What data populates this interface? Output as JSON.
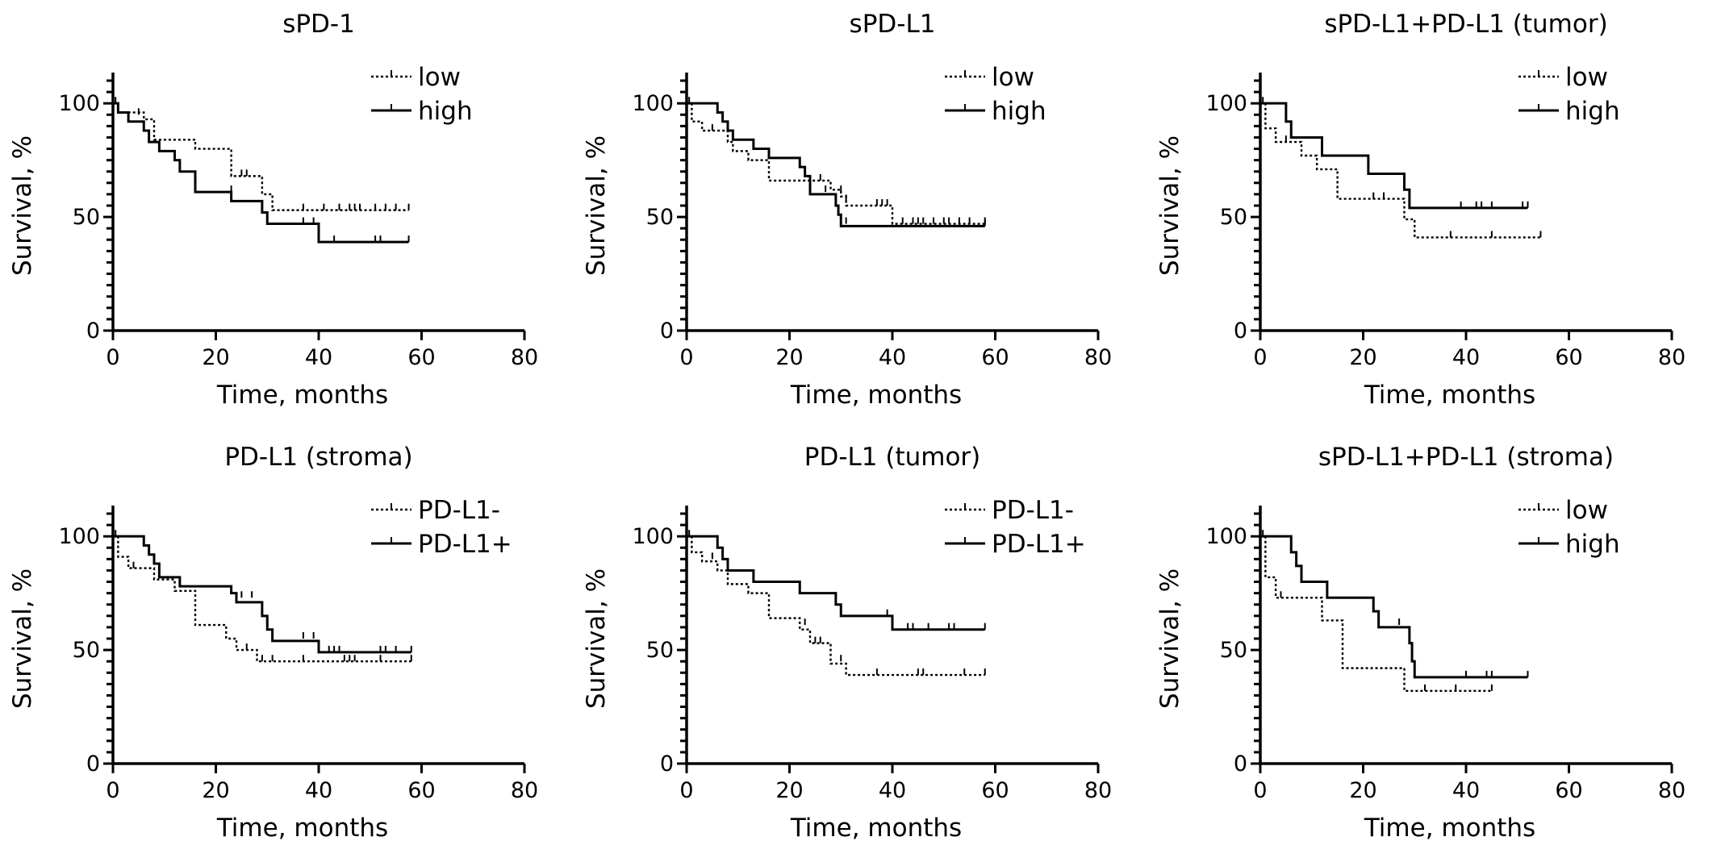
{
  "chart_data": [
    {
      "type": "line",
      "subtype": "kaplan-meier",
      "title": "sPD-1",
      "xlabel": "Time, months",
      "ylabel": "Survival, %",
      "xlim": [
        0,
        80
      ],
      "ylim": [
        0,
        110
      ],
      "xticks": [
        0,
        20,
        40,
        60,
        80
      ],
      "yticks": [
        0,
        50,
        100
      ],
      "legend_position": "top-right",
      "series": [
        {
          "name": "low",
          "style": "dotted",
          "steps": [
            [
              0,
              100
            ],
            [
              1,
              96
            ],
            [
              6,
              93
            ],
            [
              8,
              84
            ],
            [
              16,
              80
            ],
            [
              23,
              68
            ],
            [
              29,
              60
            ],
            [
              31,
              53
            ],
            [
              57.5,
              53
            ]
          ],
          "censored": [
            [
              5,
              95
            ],
            [
              25,
              68
            ],
            [
              26,
              68
            ],
            [
              37,
              53
            ],
            [
              41,
              53
            ],
            [
              44,
              53
            ],
            [
              46,
              53
            ],
            [
              47,
              53
            ],
            [
              48,
              53
            ],
            [
              51,
              53
            ],
            [
              53,
              53
            ],
            [
              55,
              53
            ],
            [
              57.5,
              53
            ]
          ]
        },
        {
          "name": "high",
          "style": "solid",
          "steps": [
            [
              0,
              100
            ],
            [
              1,
              96
            ],
            [
              3,
              92
            ],
            [
              6,
              88
            ],
            [
              7,
              83
            ],
            [
              9,
              79
            ],
            [
              12,
              75
            ],
            [
              13,
              70
            ],
            [
              16,
              61
            ],
            [
              23,
              57
            ],
            [
              29,
              52
            ],
            [
              30,
              47
            ],
            [
              40,
              39
            ],
            [
              57.5,
              39
            ]
          ],
          "censored": [
            [
              0.5,
              100
            ],
            [
              23,
              61
            ],
            [
              30,
              48
            ],
            [
              37,
              47
            ],
            [
              39,
              47
            ],
            [
              43,
              39
            ],
            [
              51,
              39
            ],
            [
              52,
              39
            ],
            [
              57.5,
              39
            ]
          ]
        }
      ]
    },
    {
      "type": "line",
      "subtype": "kaplan-meier",
      "title": "sPD-L1",
      "xlabel": "Time, months",
      "ylabel": "Survival, %",
      "xlim": [
        0,
        80
      ],
      "ylim": [
        0,
        110
      ],
      "xticks": [
        0,
        20,
        40,
        60,
        80
      ],
      "yticks": [
        0,
        50,
        100
      ],
      "legend_position": "top-right",
      "series": [
        {
          "name": "low",
          "style": "dotted",
          "steps": [
            [
              0,
              100
            ],
            [
              1,
              92
            ],
            [
              3,
              88
            ],
            [
              8,
              83
            ],
            [
              9,
              79
            ],
            [
              12,
              75
            ],
            [
              16,
              66
            ],
            [
              28,
              62
            ],
            [
              30,
              59
            ],
            [
              31,
              55
            ],
            [
              40,
              47
            ],
            [
              58,
              47
            ]
          ],
          "censored": [
            [
              5,
              88
            ],
            [
              26,
              66
            ],
            [
              30,
              61
            ],
            [
              31,
              57
            ],
            [
              37,
              55
            ],
            [
              38,
              55
            ],
            [
              39,
              55
            ],
            [
              42,
              47
            ],
            [
              44,
              47
            ],
            [
              45,
              47
            ],
            [
              46,
              47
            ],
            [
              48,
              47
            ],
            [
              50,
              47
            ],
            [
              51,
              47
            ],
            [
              53,
              47
            ],
            [
              55,
              47
            ],
            [
              58,
              47
            ]
          ]
        },
        {
          "name": "high",
          "style": "solid",
          "steps": [
            [
              0,
              100
            ],
            [
              6,
              96
            ],
            [
              7,
              92
            ],
            [
              8,
              88
            ],
            [
              9,
              84
            ],
            [
              13,
              80
            ],
            [
              16,
              76
            ],
            [
              22,
              72
            ],
            [
              23,
              68
            ],
            [
              24,
              60
            ],
            [
              29,
              55
            ],
            [
              29.5,
              51
            ],
            [
              30,
              46
            ],
            [
              58,
              46
            ]
          ],
          "censored": [
            [
              0.5,
              100
            ],
            [
              27,
              61
            ],
            [
              31,
              47
            ],
            [
              58,
              46
            ]
          ]
        }
      ]
    },
    {
      "type": "line",
      "subtype": "kaplan-meier",
      "title": "sPD-L1+PD-L1 (tumor)",
      "xlabel": "Time, months",
      "ylabel": "Survival, %",
      "xlim": [
        0,
        80
      ],
      "ylim": [
        0,
        110
      ],
      "xticks": [
        0,
        20,
        40,
        60,
        80
      ],
      "yticks": [
        0,
        50,
        100
      ],
      "legend_position": "top-right",
      "series": [
        {
          "name": "low",
          "style": "dotted",
          "steps": [
            [
              0,
              100
            ],
            [
              1,
              89
            ],
            [
              3,
              83
            ],
            [
              8,
              77
            ],
            [
              11,
              71
            ],
            [
              15,
              58
            ],
            [
              28,
              49
            ],
            [
              30,
              41
            ],
            [
              54.5,
              41
            ]
          ],
          "censored": [
            [
              5,
              83
            ],
            [
              22,
              58
            ],
            [
              24,
              58
            ],
            [
              37,
              41
            ],
            [
              45,
              41
            ],
            [
              54.5,
              41
            ]
          ]
        },
        {
          "name": "high",
          "style": "solid",
          "steps": [
            [
              0,
              100
            ],
            [
              5,
              92
            ],
            [
              6,
              85
            ],
            [
              12,
              77
            ],
            [
              21,
              69
            ],
            [
              28,
              62
            ],
            [
              29,
              54
            ],
            [
              52,
              54
            ]
          ],
          "censored": [
            [
              0.5,
              100
            ],
            [
              39,
              54
            ],
            [
              42,
              54
            ],
            [
              43,
              54
            ],
            [
              45,
              54
            ],
            [
              51,
              54
            ],
            [
              52,
              54
            ]
          ]
        }
      ]
    },
    {
      "type": "line",
      "subtype": "kaplan-meier",
      "title": "PD-L1 (stroma)",
      "xlabel": "Time, months",
      "ylabel": "Survival, %",
      "xlim": [
        0,
        80
      ],
      "ylim": [
        0,
        110
      ],
      "xticks": [
        0,
        20,
        40,
        60,
        80
      ],
      "yticks": [
        0,
        50,
        100
      ],
      "legend_position": "top-right",
      "series": [
        {
          "name": "PD-L1-",
          "style": "dotted",
          "steps": [
            [
              0,
              100
            ],
            [
              1,
              91
            ],
            [
              3,
              86
            ],
            [
              8,
              81
            ],
            [
              12,
              76
            ],
            [
              16,
              61
            ],
            [
              22,
              55
            ],
            [
              24,
              50
            ],
            [
              28,
              45
            ],
            [
              58,
              45
            ]
          ],
          "censored": [
            [
              4,
              86
            ],
            [
              26,
              50
            ],
            [
              29,
              45
            ],
            [
              31,
              45
            ],
            [
              37,
              45
            ],
            [
              45,
              45
            ],
            [
              46,
              45
            ],
            [
              47,
              45
            ],
            [
              52,
              45
            ],
            [
              58,
              45
            ]
          ]
        },
        {
          "name": "PD-L1+",
          "style": "solid",
          "steps": [
            [
              0,
              100
            ],
            [
              6,
              96
            ],
            [
              7,
              92
            ],
            [
              8,
              88
            ],
            [
              9,
              82
            ],
            [
              13,
              78
            ],
            [
              23,
              75
            ],
            [
              24,
              71
            ],
            [
              29,
              65
            ],
            [
              30,
              59
            ],
            [
              31,
              54
            ],
            [
              40,
              49
            ],
            [
              58,
              49
            ]
          ],
          "censored": [
            [
              0.5,
              100
            ],
            [
              25,
              73
            ],
            [
              27,
              73
            ],
            [
              37,
              55
            ],
            [
              39,
              55
            ],
            [
              42,
              49
            ],
            [
              43,
              49
            ],
            [
              44,
              49
            ],
            [
              52,
              49
            ],
            [
              53,
              49
            ],
            [
              55,
              49
            ],
            [
              58,
              49
            ]
          ]
        }
      ]
    },
    {
      "type": "line",
      "subtype": "kaplan-meier",
      "title": "PD-L1 (tumor)",
      "xlabel": "Time, months",
      "ylabel": "Survival, %",
      "xlim": [
        0,
        80
      ],
      "ylim": [
        0,
        110
      ],
      "xticks": [
        0,
        20,
        40,
        60,
        80
      ],
      "yticks": [
        0,
        50,
        100
      ],
      "legend_position": "top-right",
      "series": [
        {
          "name": "PD-L1-",
          "style": "dotted",
          "steps": [
            [
              0,
              100
            ],
            [
              1,
              93
            ],
            [
              3,
              89
            ],
            [
              6,
              85
            ],
            [
              8,
              79
            ],
            [
              12,
              75
            ],
            [
              16,
              64
            ],
            [
              22,
              59
            ],
            [
              24,
              53
            ],
            [
              28,
              44
            ],
            [
              31,
              39
            ],
            [
              58,
              39
            ]
          ],
          "censored": [
            [
              5,
              90
            ],
            [
              23,
              61
            ],
            [
              25,
              53
            ],
            [
              26,
              53
            ],
            [
              30,
              45
            ],
            [
              37,
              39
            ],
            [
              45,
              39
            ],
            [
              46,
              39
            ],
            [
              54,
              39
            ],
            [
              58,
              39
            ]
          ]
        },
        {
          "name": "PD-L1+",
          "style": "solid",
          "steps": [
            [
              0,
              100
            ],
            [
              6,
              95
            ],
            [
              7,
              90
            ],
            [
              8,
              85
            ],
            [
              13,
              80
            ],
            [
              22,
              75
            ],
            [
              29,
              70
            ],
            [
              30,
              65
            ],
            [
              40,
              59
            ],
            [
              58,
              59
            ]
          ],
          "censored": [
            [
              0.5,
              100
            ],
            [
              39,
              65
            ],
            [
              43,
              59
            ],
            [
              44,
              59
            ],
            [
              47,
              59
            ],
            [
              51,
              59
            ],
            [
              52,
              59
            ],
            [
              58,
              59
            ]
          ]
        }
      ]
    },
    {
      "type": "line",
      "subtype": "kaplan-meier",
      "title": "sPD-L1+PD-L1 (stroma)",
      "xlabel": "Time, months",
      "ylabel": "Survival, %",
      "xlim": [
        0,
        80
      ],
      "ylim": [
        0,
        110
      ],
      "xticks": [
        0,
        20,
        40,
        60,
        80
      ],
      "yticks": [
        0,
        50,
        100
      ],
      "legend_position": "top-right",
      "series": [
        {
          "name": "low",
          "style": "dotted",
          "steps": [
            [
              0,
              100
            ],
            [
              1,
              82
            ],
            [
              3,
              73
            ],
            [
              12,
              63
            ],
            [
              16,
              42
            ],
            [
              28,
              32
            ],
            [
              45,
              32
            ]
          ],
          "censored": [
            [
              4,
              73
            ],
            [
              32,
              32
            ],
            [
              38,
              32
            ],
            [
              45,
              32
            ]
          ]
        },
        {
          "name": "high",
          "style": "solid",
          "steps": [
            [
              0,
              100
            ],
            [
              6,
              93
            ],
            [
              7,
              87
            ],
            [
              8,
              80
            ],
            [
              13,
              73
            ],
            [
              22,
              67
            ],
            [
              23,
              60
            ],
            [
              29,
              53
            ],
            [
              29.5,
              45
            ],
            [
              30,
              38
            ],
            [
              52,
              38
            ]
          ],
          "censored": [
            [
              0.5,
              100
            ],
            [
              27,
              61
            ],
            [
              40,
              38
            ],
            [
              44,
              38
            ],
            [
              45,
              38
            ],
            [
              52,
              38
            ]
          ]
        }
      ]
    }
  ]
}
